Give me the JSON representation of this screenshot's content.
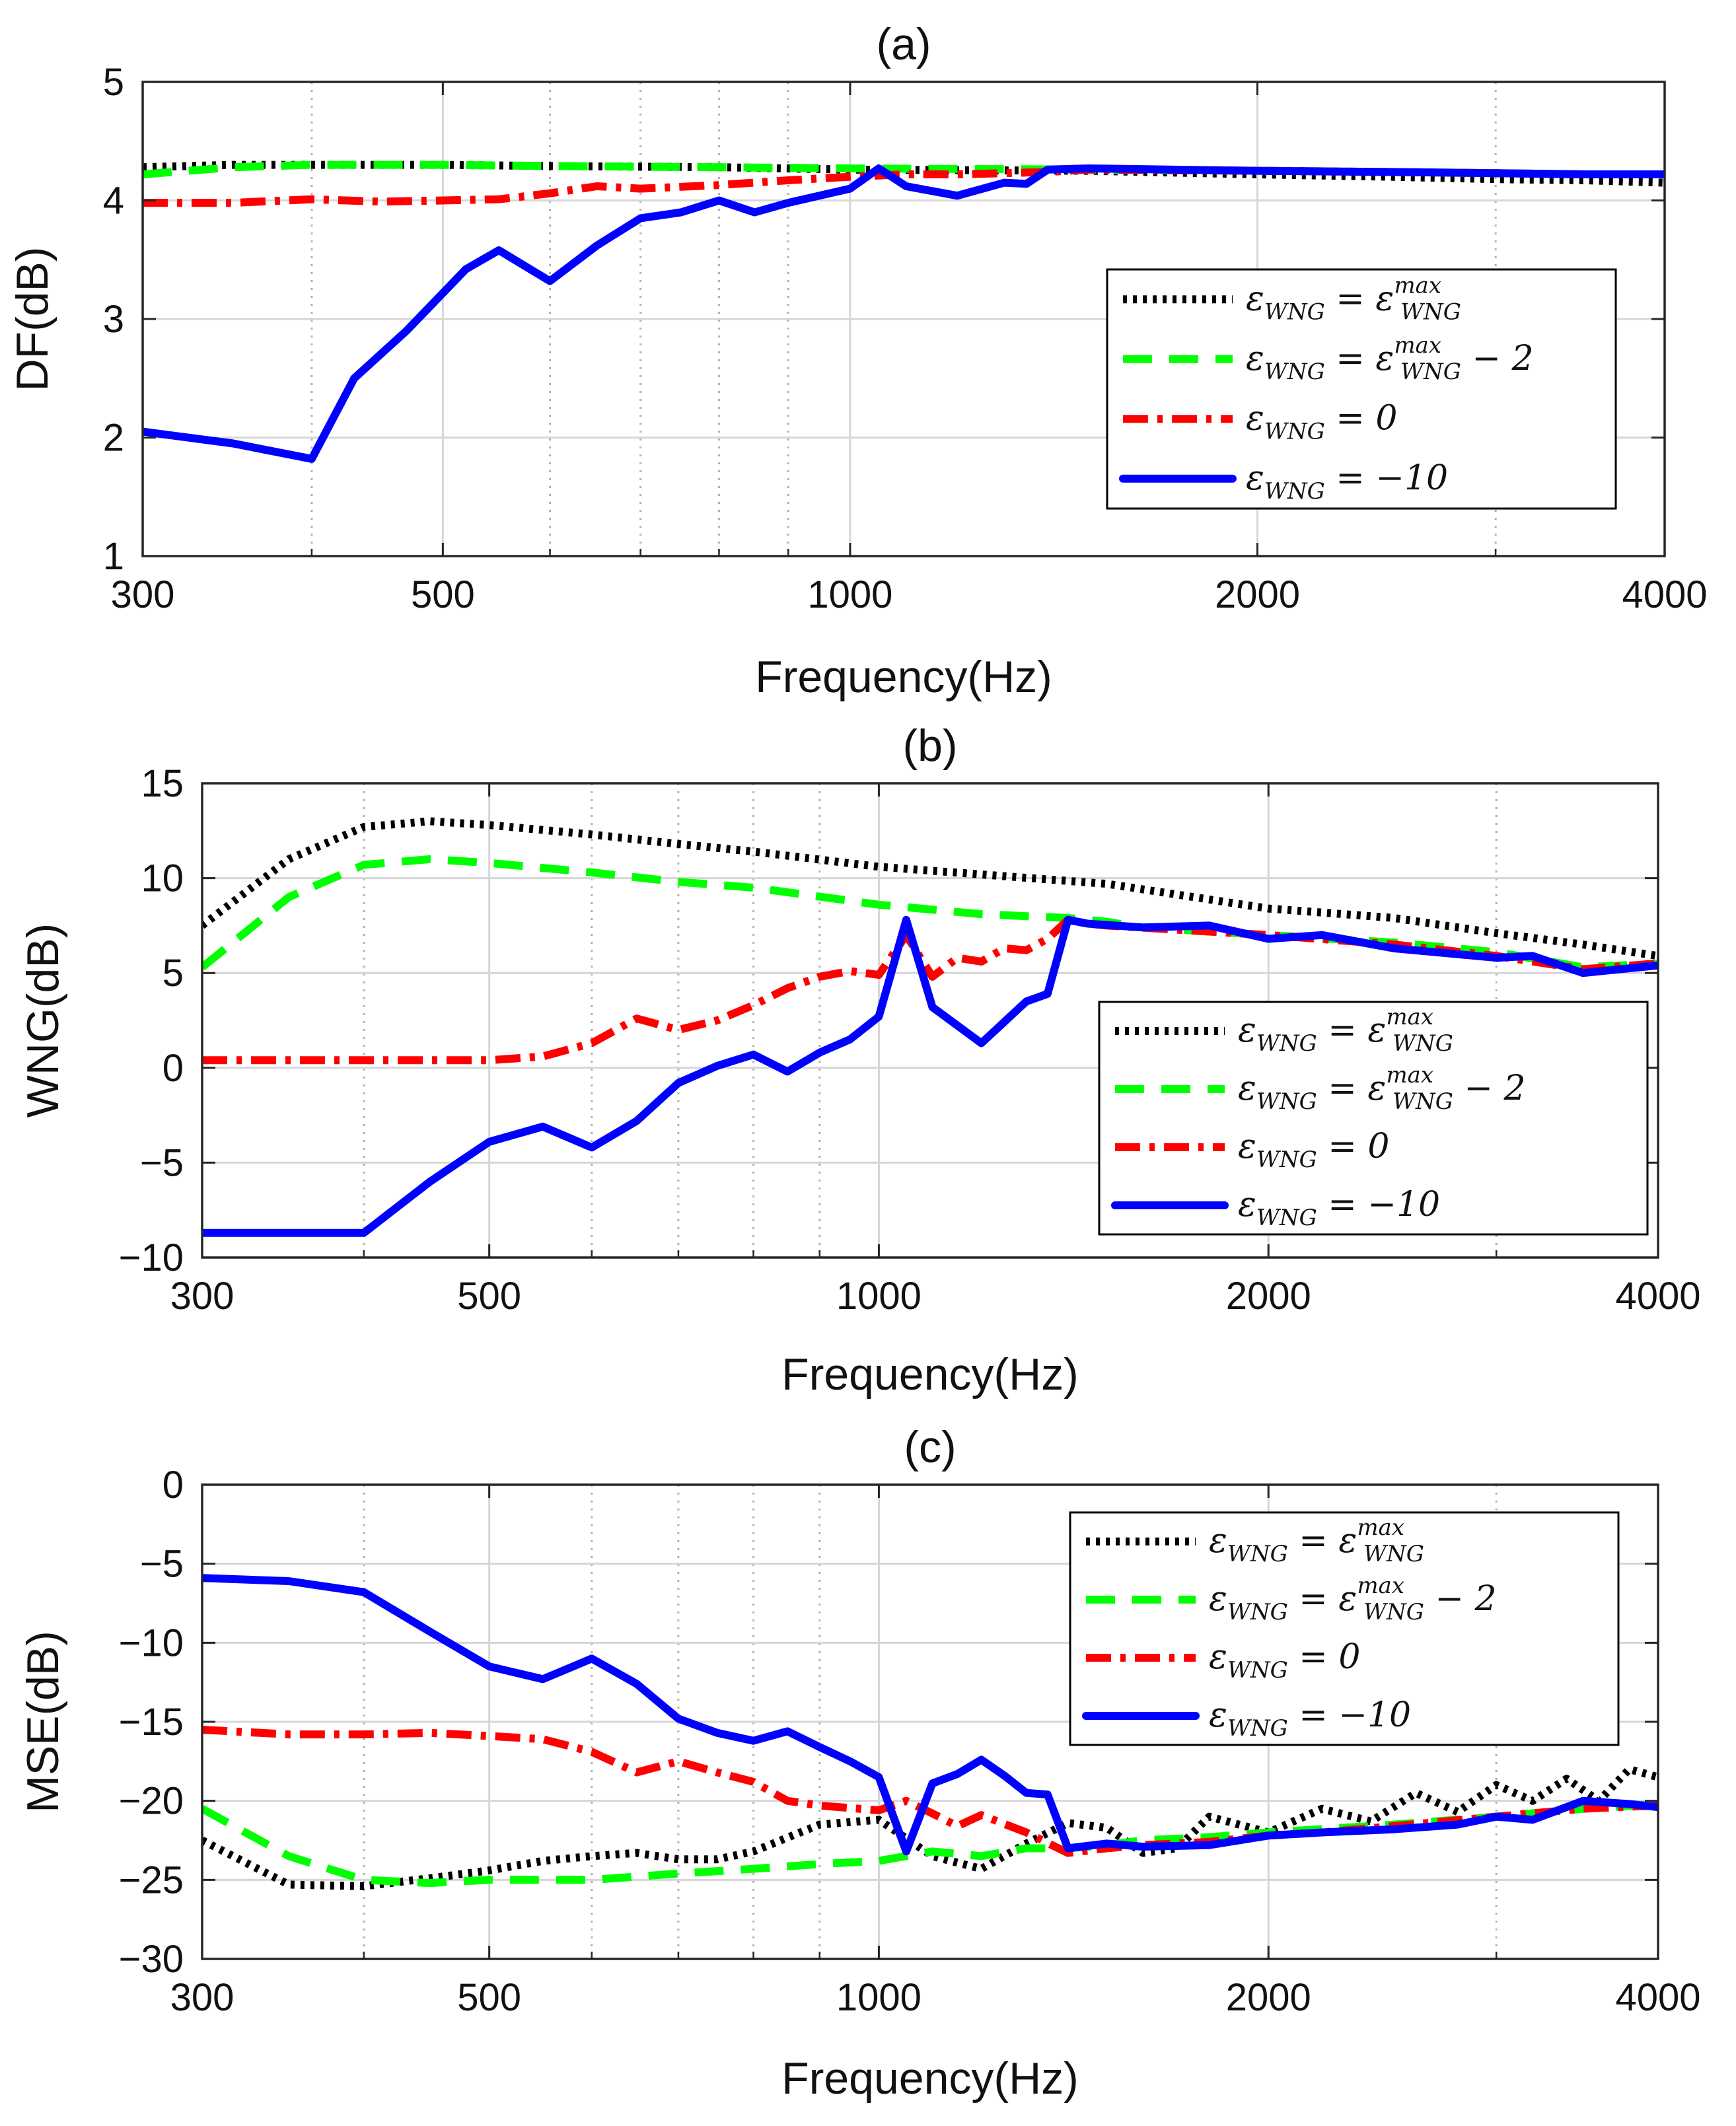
{
  "chart_data": [
    {
      "type": "line",
      "title": "(a)",
      "xlabel": "Frequency(Hz)",
      "ylabel": "DF(dB)",
      "xscale": "log",
      "xlim": [
        300,
        4000
      ],
      "ylim": [
        1,
        5
      ],
      "xticks": [
        300,
        500,
        1000,
        2000,
        4000
      ],
      "yticks": [
        1,
        2,
        3,
        4,
        5
      ],
      "minor_grid_x": [
        400,
        600,
        700,
        800,
        900,
        3000
      ],
      "grid": true,
      "legend_position": "right",
      "series": [
        {
          "name": "eps_max",
          "color": "#000000",
          "style": "dotted",
          "x": [
            300,
            350,
            400,
            500,
            600,
            800,
            1000,
            1500,
            2000,
            2500,
            3000,
            3500,
            4000
          ],
          "y": [
            4.28,
            4.3,
            4.3,
            4.3,
            4.29,
            4.28,
            4.26,
            4.25,
            4.22,
            4.2,
            4.18,
            4.17,
            4.15
          ]
        },
        {
          "name": "eps_max_minus_2",
          "color": "#00ff00",
          "style": "dashed",
          "x": [
            300,
            350,
            400,
            500,
            600,
            800,
            1000,
            1500,
            2000,
            2500,
            3000,
            3500,
            4000
          ],
          "y": [
            4.22,
            4.28,
            4.3,
            4.3,
            4.29,
            4.28,
            4.27,
            4.26,
            4.25,
            4.24,
            4.23,
            4.22,
            4.22
          ]
        },
        {
          "name": "eps_0",
          "color": "#ff0000",
          "style": "dashdot",
          "x": [
            300,
            350,
            400,
            450,
            500,
            550,
            600,
            650,
            700,
            800,
            900,
            1000,
            1100,
            1200,
            1300,
            1400,
            1500,
            2000,
            2500,
            3000,
            3500,
            4000
          ],
          "y": [
            3.98,
            3.98,
            4.01,
            3.99,
            4.0,
            4.01,
            4.06,
            4.12,
            4.1,
            4.13,
            4.17,
            4.2,
            4.22,
            4.22,
            4.23,
            4.24,
            4.26,
            4.25,
            4.24,
            4.23,
            4.22,
            4.22
          ]
        },
        {
          "name": "eps_minus_10",
          "color": "#0000ff",
          "style": "solid",
          "x": [
            300,
            350,
            400,
            430,
            470,
            520,
            550,
            600,
            650,
            700,
            750,
            800,
            850,
            900,
            1000,
            1050,
            1100,
            1200,
            1300,
            1350,
            1400,
            1500,
            2000,
            2500,
            3000,
            3500,
            4000
          ],
          "y": [
            2.05,
            1.95,
            1.82,
            2.5,
            2.9,
            3.42,
            3.58,
            3.32,
            3.62,
            3.85,
            3.9,
            4.0,
            3.9,
            3.98,
            4.1,
            4.27,
            4.12,
            4.04,
            4.15,
            4.14,
            4.26,
            4.27,
            4.25,
            4.24,
            4.23,
            4.22,
            4.22
          ]
        }
      ]
    },
    {
      "type": "line",
      "title": "(b)",
      "xlabel": "Frequency(Hz)",
      "ylabel": "WNG(dB)",
      "xscale": "log",
      "xlim": [
        300,
        4000
      ],
      "ylim": [
        -10,
        15
      ],
      "xticks": [
        300,
        500,
        1000,
        2000,
        4000
      ],
      "yticks": [
        -10,
        -5,
        0,
        5,
        10,
        15
      ],
      "minor_grid_x": [
        400,
        600,
        700,
        800,
        900,
        3000
      ],
      "grid": true,
      "legend_position": "right",
      "series": [
        {
          "name": "eps_max",
          "color": "#000000",
          "style": "dotted",
          "x": [
            300,
            350,
            400,
            450,
            500,
            600,
            700,
            800,
            1000,
            1500,
            2000,
            2500,
            3000,
            3500,
            4000
          ],
          "y": [
            7.5,
            11.0,
            12.7,
            13.0,
            12.8,
            12.3,
            11.8,
            11.4,
            10.6,
            9.7,
            8.4,
            7.9,
            7.1,
            6.5,
            5.9
          ]
        },
        {
          "name": "eps_max_minus_2",
          "color": "#00ff00",
          "style": "dashed",
          "x": [
            300,
            350,
            400,
            450,
            500,
            600,
            700,
            800,
            1000,
            1200,
            1400,
            1500,
            1600,
            2000,
            2500,
            3000,
            3500,
            4000
          ],
          "y": [
            5.3,
            9.0,
            10.7,
            11.0,
            10.8,
            10.3,
            9.8,
            9.5,
            8.6,
            8.1,
            7.9,
            7.7,
            7.4,
            7.0,
            6.6,
            6.1,
            5.3,
            5.5
          ]
        },
        {
          "name": "eps_0",
          "color": "#ff0000",
          "style": "dashdot",
          "x": [
            300,
            350,
            400,
            450,
            500,
            550,
            600,
            650,
            700,
            750,
            800,
            850,
            900,
            950,
            1000,
            1050,
            1100,
            1150,
            1200,
            1250,
            1300,
            1350,
            1400,
            1450,
            1500,
            2000,
            2500,
            3000,
            3500,
            4000
          ],
          "y": [
            0.4,
            0.4,
            0.4,
            0.4,
            0.4,
            0.6,
            1.3,
            2.6,
            2.0,
            2.5,
            3.3,
            4.2,
            4.8,
            5.1,
            4.9,
            7.0,
            4.8,
            5.8,
            5.6,
            6.3,
            6.2,
            6.8,
            7.8,
            7.6,
            7.5,
            7.0,
            6.5,
            5.9,
            5.2,
            5.5
          ]
        },
        {
          "name": "eps_minus_10",
          "color": "#0000ff",
          "style": "solid",
          "x": [
            300,
            350,
            400,
            450,
            500,
            550,
            600,
            650,
            700,
            750,
            800,
            850,
            900,
            950,
            1000,
            1050,
            1100,
            1200,
            1300,
            1350,
            1400,
            1450,
            1600,
            1800,
            2000,
            2200,
            2500,
            3000,
            3200,
            3500,
            4000
          ],
          "y": [
            -8.7,
            -8.7,
            -8.7,
            -6.0,
            -3.9,
            -3.1,
            -4.2,
            -2.8,
            -0.8,
            0.1,
            0.7,
            -0.2,
            0.8,
            1.5,
            2.7,
            7.8,
            3.2,
            1.3,
            3.5,
            3.9,
            7.8,
            7.6,
            7.4,
            7.5,
            6.8,
            7.0,
            6.3,
            5.8,
            5.9,
            5.0,
            5.4
          ]
        }
      ]
    },
    {
      "type": "line",
      "title": "(c)",
      "xlabel": "Frequency(Hz)",
      "ylabel": "MSE(dB)",
      "xscale": "log",
      "xlim": [
        300,
        4000
      ],
      "ylim": [
        -30,
        0
      ],
      "xticks": [
        300,
        500,
        1000,
        2000,
        4000
      ],
      "yticks": [
        -30,
        -25,
        -20,
        -15,
        -10,
        -5,
        0
      ],
      "minor_grid_x": [
        400,
        600,
        700,
        800,
        900,
        3000
      ],
      "grid": true,
      "legend_position": "top-right",
      "series": [
        {
          "name": "eps_max",
          "color": "#000000",
          "style": "dotted",
          "x": [
            300,
            350,
            400,
            450,
            500,
            550,
            600,
            650,
            700,
            750,
            800,
            900,
            1000,
            1100,
            1200,
            1300,
            1400,
            1500,
            1600,
            1700,
            1800,
            2000,
            2200,
            2400,
            2600,
            2800,
            3000,
            3200,
            3400,
            3600,
            3800,
            4000
          ],
          "y": [
            -22.5,
            -25.3,
            -25.4,
            -24.9,
            -24.4,
            -23.8,
            -23.5,
            -23.3,
            -23.7,
            -23.7,
            -23.2,
            -21.5,
            -21.2,
            -23.5,
            -24.3,
            -22.7,
            -21.4,
            -21.7,
            -23.3,
            -23.0,
            -21.0,
            -22.0,
            -20.5,
            -21.3,
            -19.5,
            -20.7,
            -19.0,
            -20.0,
            -18.6,
            -20.0,
            -18.0,
            -18.5
          ]
        },
        {
          "name": "eps_max_minus_2",
          "color": "#00ff00",
          "style": "dashed",
          "x": [
            300,
            350,
            400,
            450,
            500,
            600,
            700,
            800,
            900,
            1000,
            1100,
            1200,
            1300,
            1400,
            1500,
            1600,
            1800,
            2000,
            2500,
            3000,
            3500,
            4000
          ],
          "y": [
            -20.5,
            -23.5,
            -25.0,
            -25.2,
            -25.0,
            -25.0,
            -24.6,
            -24.3,
            -24.0,
            -23.8,
            -23.2,
            -23.5,
            -23.0,
            -23.0,
            -22.8,
            -22.5,
            -22.3,
            -22.0,
            -21.5,
            -21.0,
            -20.5,
            -20.2
          ]
        },
        {
          "name": "eps_0",
          "color": "#ff0000",
          "style": "dashdot",
          "x": [
            300,
            350,
            400,
            450,
            500,
            550,
            600,
            650,
            700,
            750,
            800,
            850,
            900,
            1000,
            1050,
            1100,
            1150,
            1200,
            1300,
            1400,
            1500,
            1600,
            1800,
            2000,
            2200,
            2500,
            3000,
            3500,
            4000
          ],
          "y": [
            -15.5,
            -15.8,
            -15.8,
            -15.7,
            -15.9,
            -16.1,
            -16.9,
            -18.2,
            -17.5,
            -18.2,
            -18.8,
            -20.0,
            -20.3,
            -20.6,
            -20.0,
            -20.8,
            -21.6,
            -20.9,
            -22.0,
            -23.3,
            -23.0,
            -22.8,
            -22.6,
            -22.2,
            -22.0,
            -21.6,
            -21.0,
            -20.5,
            -20.3
          ]
        },
        {
          "name": "eps_minus_10",
          "color": "#0000ff",
          "style": "solid",
          "x": [
            300,
            350,
            400,
            450,
            500,
            550,
            600,
            650,
            700,
            750,
            800,
            850,
            900,
            950,
            1000,
            1050,
            1100,
            1150,
            1200,
            1250,
            1300,
            1350,
            1400,
            1500,
            1600,
            1800,
            2000,
            2200,
            2500,
            2800,
            3000,
            3200,
            3500,
            3800,
            4000
          ],
          "y": [
            -5.9,
            -6.1,
            -6.8,
            -9.3,
            -11.5,
            -12.3,
            -11.0,
            -12.6,
            -14.8,
            -15.7,
            -16.2,
            -15.6,
            -16.6,
            -17.5,
            -18.5,
            -23.2,
            -18.9,
            -18.3,
            -17.4,
            -18.4,
            -19.5,
            -19.6,
            -23.0,
            -22.7,
            -22.9,
            -22.8,
            -22.2,
            -22.0,
            -21.8,
            -21.5,
            -21.0,
            -21.2,
            -20.0,
            -20.2,
            -20.4
          ]
        }
      ]
    }
  ],
  "legend": {
    "entries": [
      {
        "lhs": "ε",
        "lhs_sub": "WNG",
        "rel": " = ",
        "rhs": "ε",
        "rhs_sup": "max",
        "rhs_sub": "WNG",
        "tail": ""
      },
      {
        "lhs": "ε",
        "lhs_sub": "WNG",
        "rel": " = ",
        "rhs": "ε",
        "rhs_sup": "max",
        "rhs_sub": "WNG",
        "tail": " − 2"
      },
      {
        "lhs": "ε",
        "lhs_sub": "WNG",
        "rel": " = ",
        "rhs": "0",
        "rhs_sup": "",
        "rhs_sub": "",
        "tail": ""
      },
      {
        "lhs": "ε",
        "lhs_sub": "WNG",
        "rel": " = ",
        "rhs": "−10",
        "rhs_sup": "",
        "rhs_sub": "",
        "tail": ""
      }
    ]
  }
}
